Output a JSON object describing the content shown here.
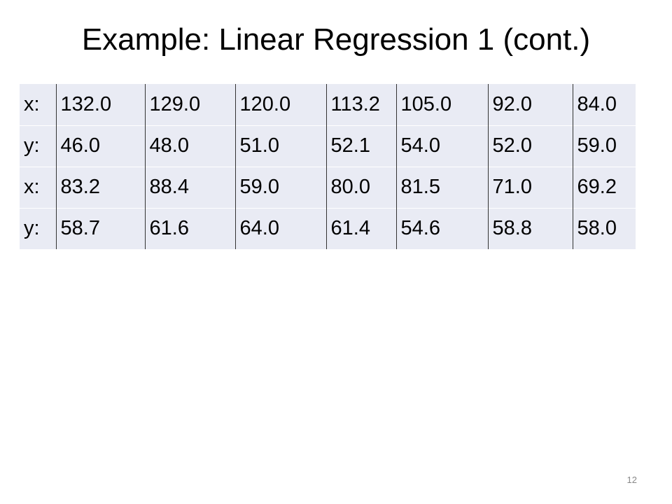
{
  "header": {
    "title": "Example: Linear Regression 1 (cont.)"
  },
  "table": {
    "rows": [
      [
        "x:",
        "132.0",
        "129.0",
        "120.0",
        "113.2",
        "105.0",
        "92.0",
        "84.0"
      ],
      [
        "y:",
        "46.0",
        "48.0",
        "51.0",
        "52.1",
        "54.0",
        "52.0",
        "59.0"
      ],
      [
        "x:",
        "83.2",
        "88.4",
        "59.0",
        "80.0",
        "81.5",
        "71.0",
        "69.2"
      ],
      [
        "y:",
        "58.7",
        "61.6",
        "64.0",
        "61.4",
        "54.6",
        "58.8",
        "58.0"
      ]
    ]
  },
  "footer": {
    "page_number": "12"
  }
}
